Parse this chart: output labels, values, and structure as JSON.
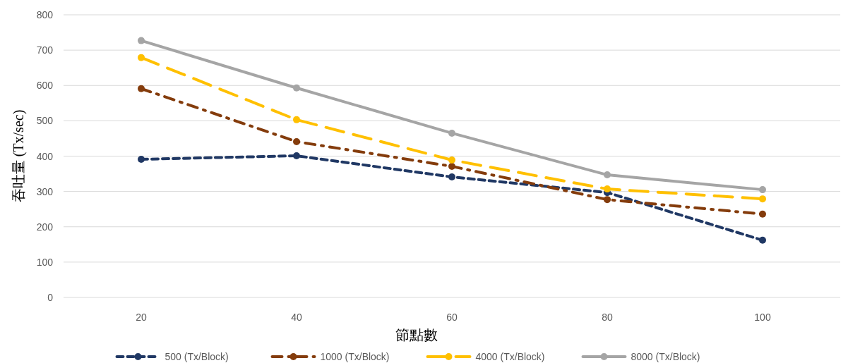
{
  "chart_data": {
    "type": "line",
    "xlabel": "節點數",
    "ylabel": "吞吐量 (Tx/sec)",
    "categories": [
      "20",
      "40",
      "60",
      "80",
      "100"
    ],
    "ylim": [
      0,
      800
    ],
    "yticks": [
      0,
      100,
      200,
      300,
      400,
      500,
      600,
      700,
      800
    ],
    "grid": "y",
    "legend": "bottom",
    "marker": "circle",
    "series": [
      {
        "name": "500 (Tx/Block)",
        "color": "#203864",
        "line_style": "dashed",
        "values": [
          391,
          401,
          341,
          297,
          162
        ]
      },
      {
        "name": "1000 (Tx/Block)",
        "color": "#843c0c",
        "line_style": "dashdot",
        "values": [
          591,
          441,
          371,
          277,
          236
        ]
      },
      {
        "name": "4000 (Tx/Block)",
        "color": "#ffc000",
        "line_style": "longdash",
        "values": [
          679,
          503,
          389,
          307,
          279
        ]
      },
      {
        "name": "8000 (Tx/Block)",
        "color": "#a5a5a5",
        "line_style": "solid",
        "values": [
          727,
          593,
          465,
          347,
          305
        ]
      }
    ]
  }
}
